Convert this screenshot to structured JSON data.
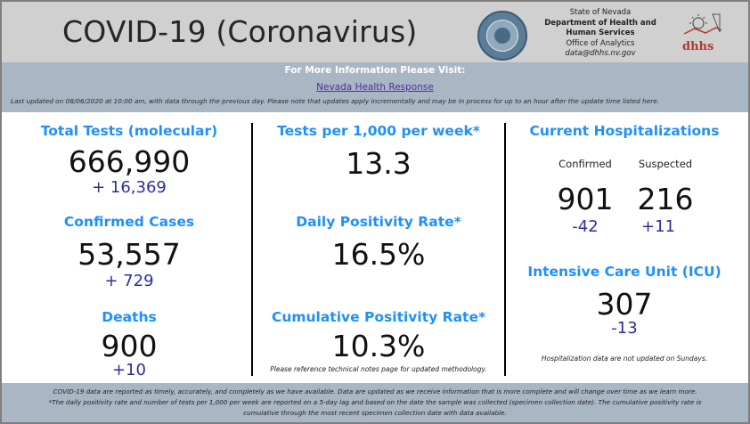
{
  "header": {
    "title": "COVID-19 (Coronavirus)",
    "agency_lines": [
      "State of Nevada",
      "Department of Health and",
      "Human Services",
      "Office of Analytics",
      "data@dhhs.nv.gov"
    ],
    "seal_icon": "state-seal",
    "logo_icon": "dhhs-logo"
  },
  "info": {
    "heading": "For More Information Please Visit:",
    "link_text": "Nevada Health Response",
    "updated": "Last updated on 08/06/2020 at 10:00 am, with data through the previous day.  Please note that updates apply incrementally and may be in process for up to an hour after the update time listed here."
  },
  "left": {
    "tests_label": "Total Tests (molecular)",
    "tests_value": "666,990",
    "tests_delta": "+ 16,369",
    "cases_label": "Confirmed Cases",
    "cases_value": "53,557",
    "cases_delta": "+ 729",
    "deaths_label": "Deaths",
    "deaths_value": "900",
    "deaths_delta": "+10"
  },
  "middle": {
    "tpk_label": "Tests per 1,000 per week*",
    "tpk_value": "13.3",
    "daily_label": "Daily Positivity Rate*",
    "daily_value": "16.5%",
    "cum_label": "Cumulative Positivity Rate*",
    "cum_value": "10.3%",
    "note": "Please reference technical notes page for updated methodology."
  },
  "right": {
    "hosp_label": "Current Hospitalizations",
    "confirmed_label": "Confirmed",
    "suspected_label": "Suspected",
    "confirmed_value": "901",
    "suspected_value": "216",
    "confirmed_delta": "-42",
    "suspected_delta": "+11",
    "icu_label": "Intensive Care Unit (ICU)",
    "icu_value": "307",
    "icu_delta": "-13",
    "note": "Hospitalization data are not updated on Sundays."
  },
  "footer": {
    "line1": "COVID-19 data are reported as timely, accurately, and completely as we have available.  Data are updated as we receive information that is more complete and will change over time as we learn more.",
    "line2": "*The daily positivity rate and number of tests per 1,000 per week are reported on a 5-day lag and based on the date the sample was collected (specimen collection date).  The cumulative positivity rate is",
    "line3": "cumulative through the most recent specimen collection date with data available."
  },
  "colors": {
    "accent": "#1e90ff",
    "delta": "#2e2ea0",
    "header_bg": "#d0d0d0",
    "band_bg": "#a9b6c4"
  }
}
